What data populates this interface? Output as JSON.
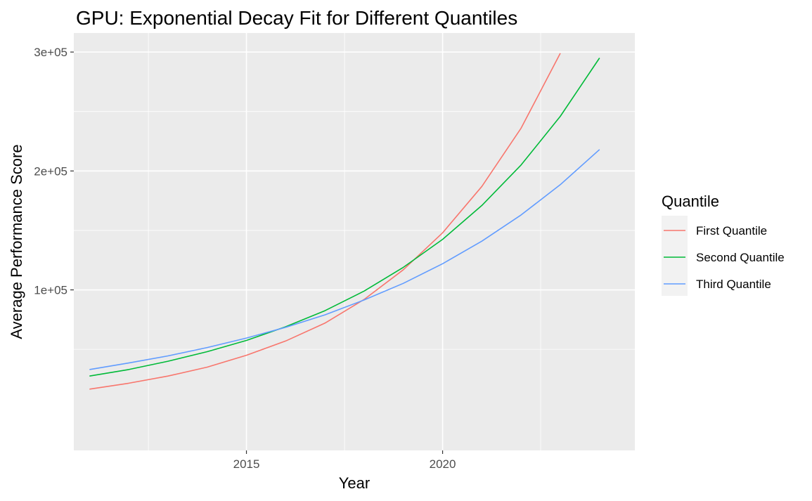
{
  "chart_data": {
    "type": "line",
    "title": "GPU: Exponential Decay Fit for Different Quantiles",
    "xlabel": "Year",
    "ylabel": "Average Performance Score",
    "xlim": [
      2010.6,
      2024.9
    ],
    "ylim": [
      -35000,
      316000
    ],
    "x_ticks": [
      {
        "value": 2015,
        "label": "2015"
      },
      {
        "value": 2020,
        "label": "2020"
      }
    ],
    "x_minor": [
      2012.5,
      2017.5,
      2022.5
    ],
    "y_ticks": [
      {
        "value": 100000,
        "label": "1e+05"
      },
      {
        "value": 200000,
        "label": "2e+05"
      },
      {
        "value": 300000,
        "label": "3e+05"
      }
    ],
    "y_minor": [
      50000,
      150000,
      250000
    ],
    "grid": true,
    "legend": {
      "title": "Quantile",
      "position": "right"
    },
    "series": [
      {
        "name": "First Quantile",
        "color": "#F8766D",
        "x": [
          2011,
          2012,
          2013,
          2014,
          2015,
          2016,
          2017,
          2018,
          2019,
          2020,
          2021,
          2022,
          2023
        ],
        "y": [
          16500,
          21500,
          27500,
          35000,
          45000,
          57000,
          72000,
          92000,
          117000,
          148000,
          187000,
          236000,
          299000
        ]
      },
      {
        "name": "Second Quantile",
        "color": "#00BA38",
        "x": [
          2011,
          2012,
          2013,
          2014,
          2015,
          2016,
          2017,
          2018,
          2019,
          2020,
          2021,
          2022,
          2023,
          2024
        ],
        "y": [
          27500,
          33000,
          40000,
          48000,
          57500,
          69000,
          82500,
          99000,
          119000,
          142500,
          171000,
          205000,
          246000,
          295000
        ]
      },
      {
        "name": "Third Quantile",
        "color": "#619CFF",
        "x": [
          2011,
          2012,
          2013,
          2014,
          2015,
          2016,
          2017,
          2018,
          2019,
          2020,
          2021,
          2022,
          2023,
          2024
        ],
        "y": [
          33000,
          38500,
          44500,
          51500,
          59500,
          68500,
          79000,
          91500,
          105500,
          122000,
          141000,
          163000,
          188500,
          218000
        ]
      }
    ]
  }
}
